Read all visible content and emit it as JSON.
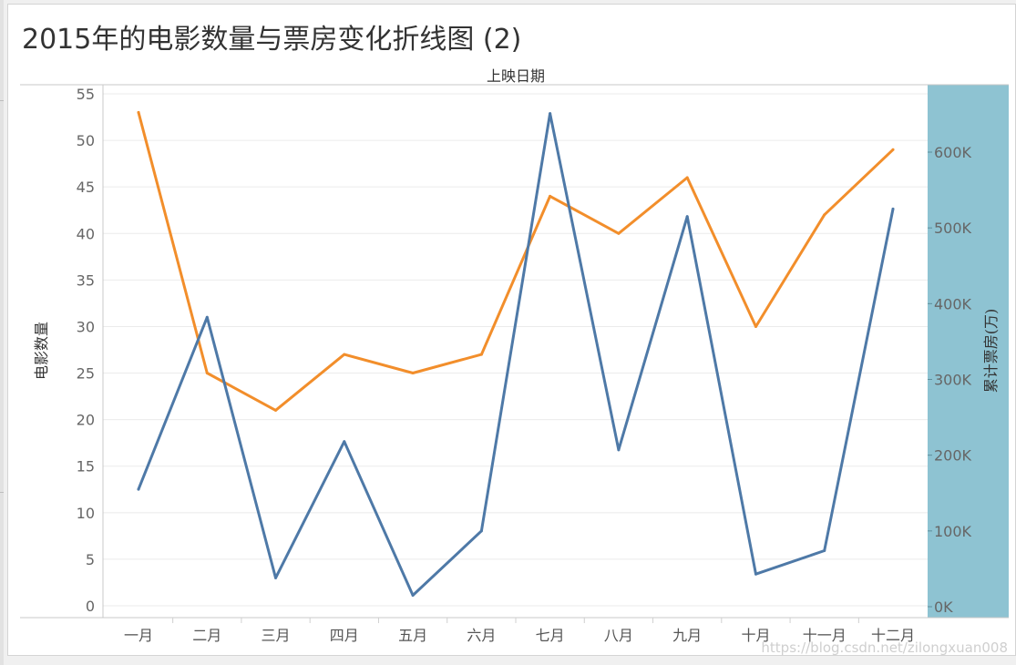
{
  "page": {
    "title": "2015年的电影数量与票房变化折线图 (2)",
    "watermark": "https://blog.csdn.net/zilongxuan008"
  },
  "colors": {
    "count_line": "#4e79a7",
    "box_office_line": "#f28e2b",
    "right_axis_band": "#8ec3d2"
  },
  "chart_data": {
    "type": "line",
    "title": "2015年的电影数量与票房变化折线图 (2)",
    "x_axis_title": "上映日期",
    "categories": [
      "一月",
      "二月",
      "三月",
      "四月",
      "五月",
      "六月",
      "七月",
      "八月",
      "九月",
      "十月",
      "十一月",
      "十二月"
    ],
    "y_left": {
      "label": "电影数量",
      "range": [
        0,
        55
      ],
      "ticks": [
        0,
        5,
        10,
        15,
        20,
        25,
        30,
        35,
        40,
        45,
        50,
        55
      ],
      "tick_labels": [
        "0",
        "5",
        "10",
        "15",
        "20",
        "25",
        "30",
        "35",
        "40",
        "45",
        "50",
        "55"
      ]
    },
    "y_right": {
      "label": "累计票房(万)",
      "range": [
        0,
        665000
      ],
      "ticks": [
        0,
        100000,
        200000,
        300000,
        400000,
        500000,
        600000
      ],
      "tick_labels": [
        "0K",
        "100K",
        "200K",
        "300K",
        "400K",
        "500K",
        "600K"
      ]
    },
    "series": [
      {
        "axis": "left",
        "color": "#f28e2b",
        "values": [
          53,
          25,
          21,
          27,
          25,
          27,
          44,
          40,
          46,
          30,
          42,
          49
        ]
      },
      {
        "axis": "right",
        "color": "#4e79a7",
        "values": [
          155000,
          382000,
          38000,
          218000,
          15000,
          100000,
          651000,
          207000,
          515000,
          43000,
          74000,
          525000
        ]
      }
    ],
    "grid": true
  }
}
